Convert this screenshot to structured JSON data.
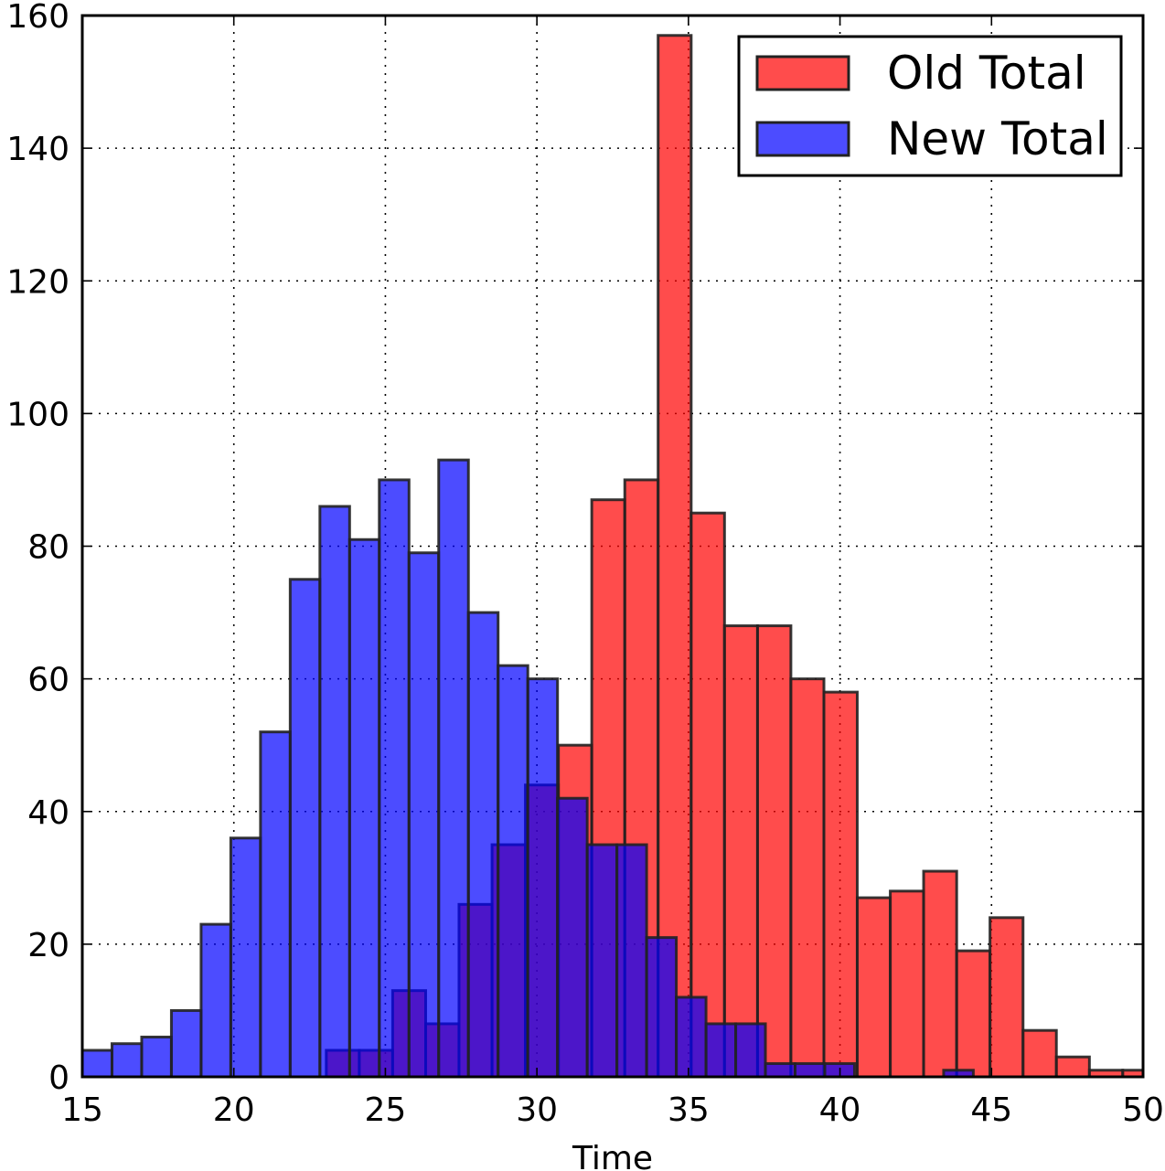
{
  "chart_data": {
    "type": "bar",
    "xlabel": "Time",
    "ylabel": "",
    "title": "",
    "xlim": [
      15,
      50
    ],
    "ylim": [
      0,
      160
    ],
    "xticks": [
      15,
      20,
      25,
      30,
      35,
      40,
      45,
      50
    ],
    "yticks": [
      0,
      20,
      40,
      60,
      80,
      100,
      120,
      140,
      160
    ],
    "grid": true,
    "legend": {
      "placement": "top-right"
    },
    "series": [
      {
        "name": "Old Total",
        "color": "#ff0000",
        "bin_edges": [
          23.05,
          24.14,
          25.24,
          26.33,
          27.43,
          28.52,
          29.62,
          30.71,
          31.81,
          32.9,
          34.0,
          35.09,
          36.19,
          37.28,
          38.38,
          39.47,
          40.57,
          41.66,
          42.76,
          43.85,
          44.95,
          46.04,
          47.14,
          48.23,
          49.33,
          50.0
        ],
        "values": [
          4,
          4,
          13,
          8,
          26,
          35,
          44,
          50,
          87,
          90,
          157,
          85,
          68,
          68,
          60,
          58,
          27,
          28,
          31,
          19,
          24,
          7,
          3,
          1,
          1
        ]
      },
      {
        "name": "New Total",
        "color": "#0000ff",
        "bin_edges": [
          15.0,
          15.98,
          16.96,
          17.94,
          18.92,
          19.9,
          20.88,
          21.86,
          22.84,
          23.82,
          24.8,
          25.78,
          26.76,
          27.74,
          28.72,
          29.7,
          30.68,
          31.66,
          32.64,
          33.62,
          34.6,
          35.58,
          36.56,
          37.54,
          38.52,
          39.5,
          40.48,
          41.46,
          42.44,
          43.42,
          44.4
        ],
        "values": [
          4,
          5,
          6,
          10,
          23,
          36,
          52,
          75,
          86,
          81,
          90,
          79,
          93,
          70,
          62,
          60,
          42,
          35,
          35,
          21,
          12,
          8,
          8,
          2,
          2,
          2,
          0,
          0,
          0,
          1
        ]
      }
    ]
  }
}
